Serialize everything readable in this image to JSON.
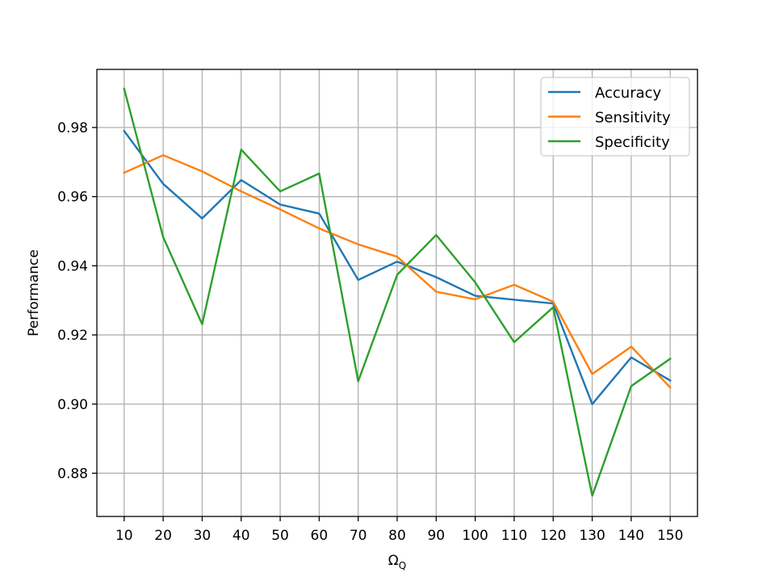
{
  "chart_data": {
    "type": "line",
    "title": "",
    "xlabel": "Ω",
    "xlabel_sub": "Q",
    "ylabel": "Performance",
    "x": [
      10,
      20,
      30,
      40,
      50,
      60,
      70,
      80,
      90,
      100,
      110,
      120,
      130,
      140,
      150
    ],
    "xlim": [
      3,
      157
    ],
    "ylim": [
      0.8675,
      0.9968
    ],
    "y_ticks": [
      0.88,
      0.9,
      0.92,
      0.94,
      0.96,
      0.98
    ],
    "y_tick_labels": [
      "0.88",
      "0.90",
      "0.92",
      "0.94",
      "0.96",
      "0.98"
    ],
    "x_tick_labels": [
      "10",
      "20",
      "30",
      "40",
      "50",
      "60",
      "70",
      "80",
      "90",
      "100",
      "110",
      "120",
      "130",
      "140",
      "150"
    ],
    "grid": true,
    "legend_position": "top-right",
    "series": [
      {
        "name": "Accuracy",
        "color": "#1f77b4",
        "values": [
          0.979,
          0.9637,
          0.9537,
          0.9648,
          0.9577,
          0.9551,
          0.9359,
          0.9412,
          0.9367,
          0.9313,
          0.9302,
          0.9291,
          0.9,
          0.9135,
          0.9068
        ]
      },
      {
        "name": "Sensitivity",
        "color": "#ff7f0e",
        "values": [
          0.9669,
          0.972,
          0.9673,
          0.9615,
          0.9563,
          0.9508,
          0.9462,
          0.9426,
          0.9325,
          0.9303,
          0.9345,
          0.9296,
          0.9087,
          0.9166,
          0.9048
        ]
      },
      {
        "name": "Specificity",
        "color": "#2ca02c",
        "values": [
          0.9912,
          0.9483,
          0.9231,
          0.9736,
          0.9615,
          0.9667,
          0.9066,
          0.9374,
          0.9489,
          0.9352,
          0.9179,
          0.928,
          0.8735,
          0.9052,
          0.9131
        ]
      }
    ]
  }
}
